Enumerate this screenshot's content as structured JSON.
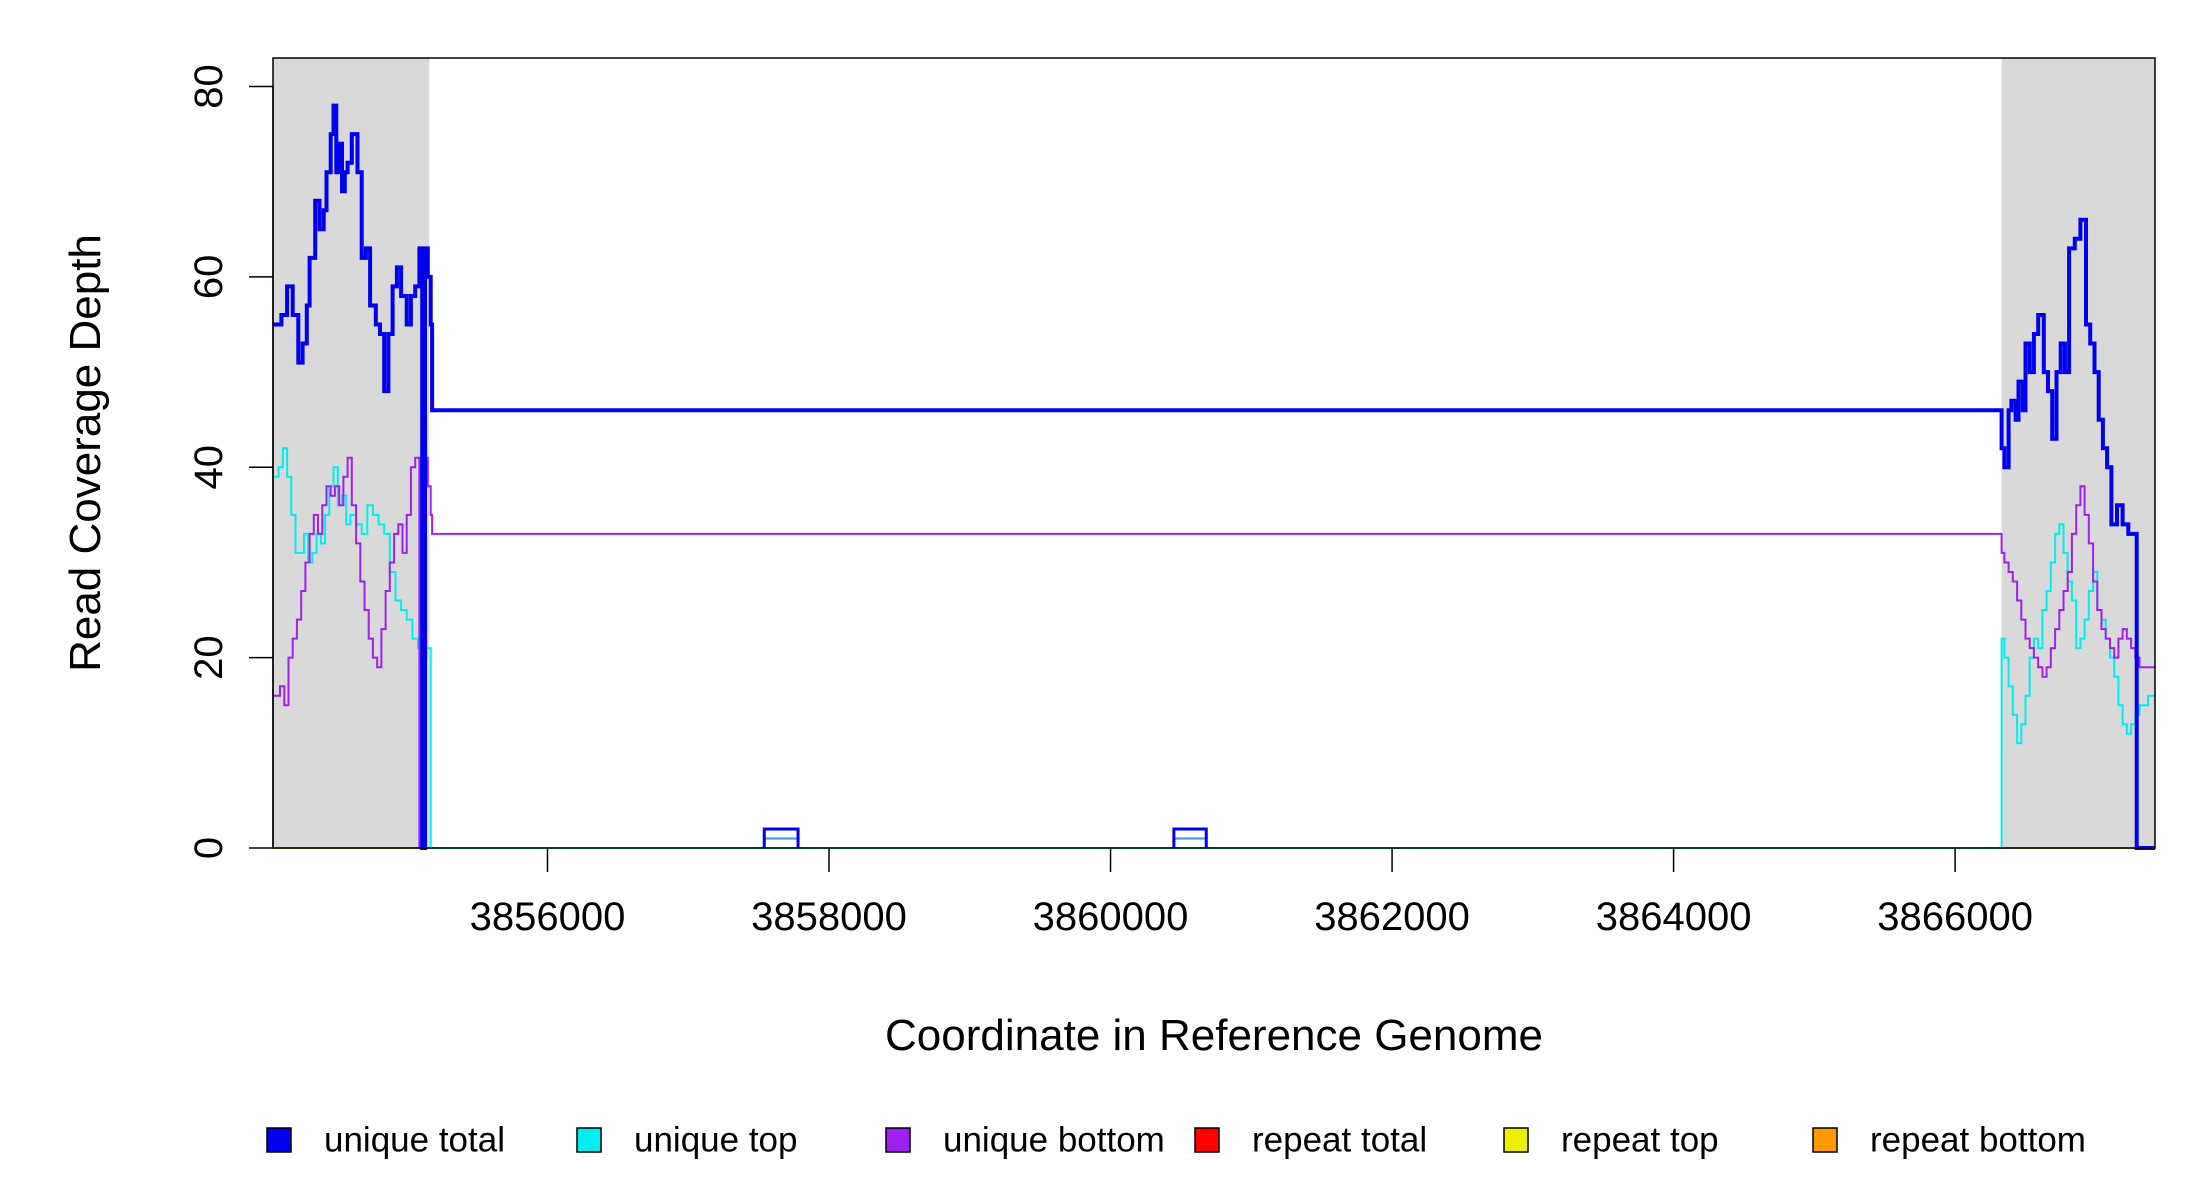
{
  "chart_data": {
    "type": "line",
    "title": "",
    "xlabel": "Coordinate in Reference Genome",
    "ylabel": "Read Coverage Depth",
    "xlim": [
      3854050,
      3867420
    ],
    "ylim": [
      0,
      83
    ],
    "x_ticks": [
      3856000,
      3858000,
      3860000,
      3862000,
      3864000,
      3866000
    ],
    "x_tick_labels": [
      "3856000",
      "3858000",
      "3860000",
      "3862000",
      "3864000",
      "3866000"
    ],
    "y_ticks": [
      0,
      20,
      40,
      60,
      80
    ],
    "y_tick_labels": [
      "0",
      "20",
      "40",
      "60",
      "80"
    ],
    "grid": false,
    "shaded_regions": [
      {
        "x0": 3854050,
        "x1": 3855160,
        "color": "#d9d9d9"
      },
      {
        "x0": 3866330,
        "x1": 3867420,
        "color": "#d9d9d9"
      }
    ],
    "legend_position": "bottom",
    "series": [
      {
        "name": "unique total",
        "color": "#0000ee",
        "stroke_width": 4,
        "x": [
          3854050,
          3854110,
          3854150,
          3854190,
          3854230,
          3854260,
          3854290,
          3854310,
          3854350,
          3854380,
          3854410,
          3854430,
          3854460,
          3854480,
          3854500,
          3854520,
          3854540,
          3854560,
          3854580,
          3854610,
          3854650,
          3854680,
          3854710,
          3854740,
          3854780,
          3854810,
          3854840,
          3854870,
          3854900,
          3854930,
          3854960,
          3855000,
          3855030,
          3855060,
          3855090,
          3855110,
          3855130,
          3855150,
          3855170,
          3855180,
          3866330,
          3866350,
          3866380,
          3866400,
          3866430,
          3866450,
          3866480,
          3866500,
          3866530,
          3866560,
          3866590,
          3866630,
          3866660,
          3866690,
          3866720,
          3866750,
          3866780,
          3866810,
          3866850,
          3866890,
          3866930,
          3866960,
          3866990,
          3867020,
          3867050,
          3867080,
          3867110,
          3867150,
          3867190,
          3867230,
          3867260,
          3867290,
          3867320,
          3867350,
          3867390,
          3867420
        ],
        "y": [
          55,
          56,
          59,
          56,
          51,
          53,
          57,
          62,
          68,
          65,
          67,
          71,
          75,
          78,
          71,
          74,
          69,
          71,
          72,
          75,
          71,
          62,
          63,
          57,
          55,
          54,
          48,
          54,
          59,
          61,
          58,
          55,
          58,
          59,
          63,
          0,
          63,
          60,
          55,
          46,
          42,
          40,
          46,
          47,
          45,
          49,
          46,
          53,
          50,
          54,
          56,
          50,
          48,
          43,
          50,
          53,
          50,
          63,
          64,
          66,
          55,
          53,
          50,
          45,
          42,
          40,
          34,
          36,
          34,
          33,
          33,
          0,
          0,
          0,
          0,
          0
        ]
      },
      {
        "name": "unique top",
        "color": "#00eeee",
        "stroke_width": 2,
        "x": [
          3854050,
          3854090,
          3854120,
          3854150,
          3854180,
          3854210,
          3854240,
          3854270,
          3854300,
          3854330,
          3854360,
          3854390,
          3854420,
          3854450,
          3854480,
          3854510,
          3854540,
          3854570,
          3854600,
          3854640,
          3854680,
          3854720,
          3854760,
          3854800,
          3854840,
          3854880,
          3854920,
          3854960,
          3855000,
          3855040,
          3855080,
          3855110,
          3855140,
          3855170,
          3855180,
          3866330,
          3866350,
          3866380,
          3866410,
          3866440,
          3866470,
          3866500,
          3866530,
          3866560,
          3866590,
          3866620,
          3866650,
          3866680,
          3866710,
          3866740,
          3866770,
          3866800,
          3866830,
          3866860,
          3866890,
          3866920,
          3866950,
          3866980,
          3867010,
          3867040,
          3867070,
          3867100,
          3867130,
          3867160,
          3867190,
          3867220,
          3867250,
          3867280,
          3867310,
          3867340,
          3867370,
          3867400,
          3867420
        ],
        "y": [
          39,
          40,
          42,
          39,
          35,
          31,
          31,
          33,
          30,
          31,
          33,
          32,
          35,
          38,
          40,
          36,
          37,
          34,
          35,
          34,
          33,
          36,
          35,
          34,
          33,
          29,
          26,
          25,
          24,
          22,
          21,
          20,
          21,
          0,
          0,
          22,
          20,
          17,
          14,
          11,
          13,
          16,
          20,
          22,
          21,
          25,
          27,
          30,
          33,
          34,
          31,
          28,
          26,
          21,
          22,
          24,
          27,
          29,
          25,
          24,
          22,
          20,
          18,
          15,
          13,
          12,
          13,
          14,
          15,
          15,
          16,
          16,
          16
        ]
      },
      {
        "name": "unique bottom",
        "color": "#a020f0",
        "stroke_width": 2,
        "x": [
          3854050,
          3854100,
          3854130,
          3854160,
          3854190,
          3854220,
          3854250,
          3854280,
          3854310,
          3854340,
          3854370,
          3854400,
          3854430,
          3854460,
          3854490,
          3854520,
          3854550,
          3854580,
          3854610,
          3854640,
          3854670,
          3854700,
          3854730,
          3854760,
          3854790,
          3854820,
          3854850,
          3854880,
          3854910,
          3854940,
          3854970,
          3855000,
          3855030,
          3855060,
          3855090,
          3855120,
          3855150,
          3855170,
          3855180,
          3866330,
          3866350,
          3866380,
          3866410,
          3866440,
          3866470,
          3866500,
          3866530,
          3866560,
          3866590,
          3866620,
          3866650,
          3866680,
          3866710,
          3866740,
          3866770,
          3866800,
          3866830,
          3866860,
          3866890,
          3866920,
          3866950,
          3866980,
          3867010,
          3867040,
          3867070,
          3867100,
          3867130,
          3867160,
          3867190,
          3867220,
          3867250,
          3867280,
          3867310,
          3867340,
          3867370,
          3867400,
          3867420
        ],
        "y": [
          16,
          17,
          15,
          20,
          22,
          24,
          27,
          30,
          33,
          35,
          33,
          36,
          38,
          37,
          38,
          36,
          39,
          41,
          36,
          32,
          28,
          25,
          22,
          20,
          19,
          23,
          27,
          30,
          33,
          34,
          31,
          35,
          40,
          41,
          0,
          41,
          38,
          35,
          33,
          31,
          30,
          29,
          28,
          26,
          24,
          22,
          21,
          20,
          19,
          18,
          19,
          21,
          23,
          25,
          27,
          29,
          33,
          36,
          38,
          35,
          32,
          28,
          25,
          23,
          22,
          21,
          20,
          22,
          23,
          22,
          21,
          20,
          19,
          19,
          19,
          19,
          19
        ]
      },
      {
        "name": "repeat total",
        "color": "#ff0000",
        "stroke_width": 2,
        "x": [
          3854050,
          3867420
        ],
        "y": [
          0,
          0
        ]
      },
      {
        "name": "repeat top",
        "color": "#eeee00",
        "stroke_width": 2,
        "x": [
          3854050,
          3867420
        ],
        "y": [
          0,
          0
        ]
      },
      {
        "name": "repeat bottom",
        "color": "#ff9900",
        "stroke_width": 2,
        "x": [
          3854050,
          3867420
        ],
        "y": [
          0,
          0
        ]
      }
    ],
    "low_coverage_blips": [
      {
        "x0": 3857540,
        "x1": 3857780,
        "total": 2,
        "top": 1,
        "bottom": 1
      },
      {
        "x0": 3860450,
        "x1": 3860680,
        "total": 2,
        "top": 1,
        "bottom": 1
      }
    ]
  }
}
